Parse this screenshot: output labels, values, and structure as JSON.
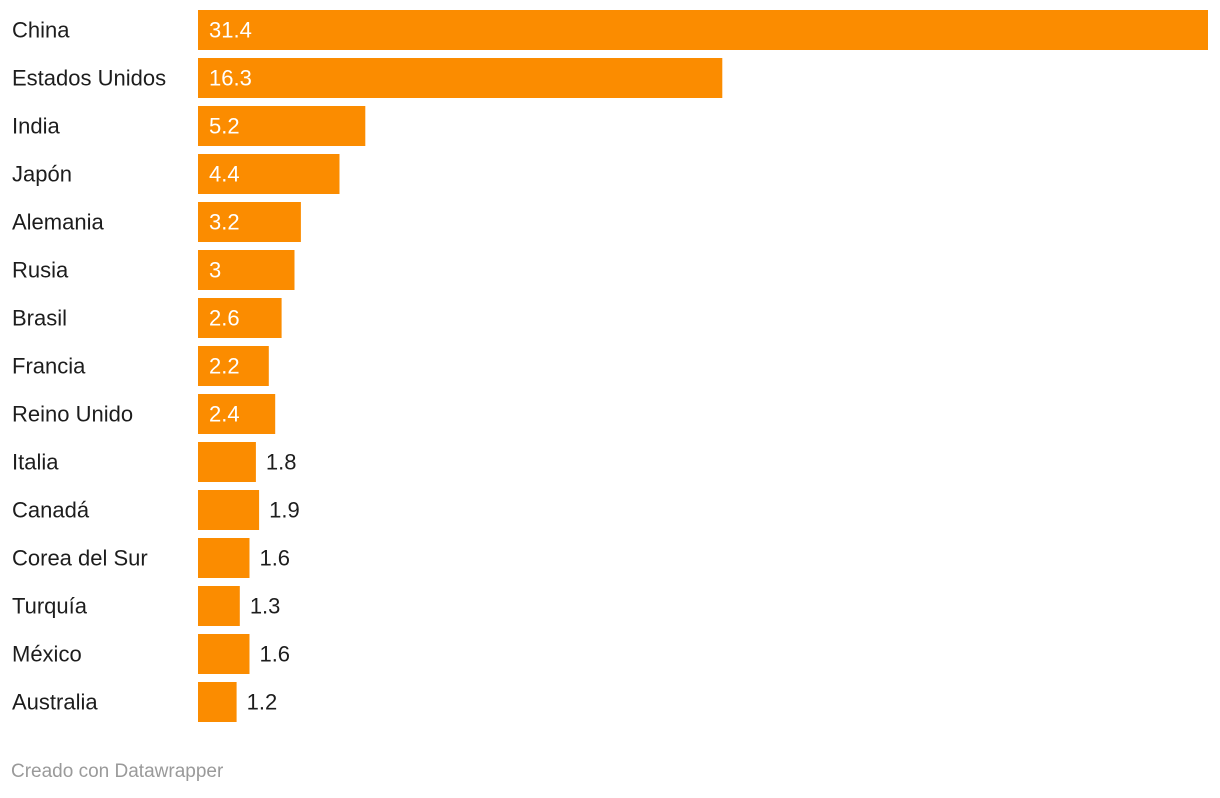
{
  "chart_data": {
    "type": "bar",
    "orientation": "horizontal",
    "categories": [
      "China",
      "Estados Unidos",
      "India",
      "Japón",
      "Alemania",
      "Rusia",
      "Brasil",
      "Francia",
      "Reino Unido",
      "Italia",
      "Canadá",
      "Corea del Sur",
      "Turquía",
      "México",
      "Australia"
    ],
    "values": [
      31.4,
      16.3,
      5.2,
      4.4,
      3.2,
      3,
      2.6,
      2.2,
      2.4,
      1.8,
      1.9,
      1.6,
      1.3,
      1.6,
      1.2
    ],
    "value_labels": [
      "31.4",
      "16.3",
      "5.2",
      "4.4",
      "3.2",
      "3",
      "2.6",
      "2.2",
      "2.4",
      "1.8",
      "1.9",
      "1.6",
      "1.3",
      "1.6",
      "1.2"
    ],
    "xlim": [
      0,
      31.4
    ],
    "grid": false,
    "bar_color": "#fb8c00",
    "label_inside_color": "#ffffff",
    "label_outside_color": "#1d1d1d"
  },
  "footer": {
    "credit": "Creado con Datawrapper"
  }
}
